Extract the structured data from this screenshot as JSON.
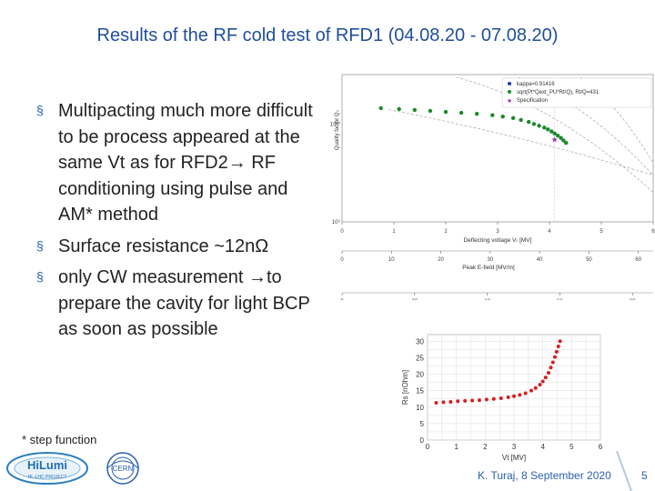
{
  "title": "Results of the RF cold test of RFD1 (04.08.20 - 07.08.20)",
  "bullets": [
    "Multipacting much more difficult to be process appeared at the same Vt as for RFD2→ RF conditioning using pulse and AM* method",
    "Surface resistance ~12nΩ",
    "only CW measurement →to prepare the cavity for light BCP as soon as possible"
  ],
  "bullet_marker": "§",
  "footnote": "* step function",
  "footer": {
    "author_date": "K. Turaj, 8 September 2020",
    "page_number": "5"
  },
  "logos": {
    "hilumi": "HiLumi",
    "hilumi_sub": "HL-LHC PROJECT",
    "cern": "CERN"
  },
  "colors": {
    "title": "#1f4e9c",
    "accent": "#2a60b0",
    "q_series": "#1a8a2a",
    "kappa_series": "#1a3cc0",
    "spec": "#9b30c0",
    "rs_series": "#d42020"
  },
  "chart_data": [
    {
      "type": "scatter",
      "title": "",
      "ylabel": "Quality factor Q₀",
      "xlabel": "Deflecting voltage Vₜ [MV]",
      "xlim": [
        0,
        6
      ],
      "x_ticks": [
        "0",
        "1",
        "2",
        "3",
        "4",
        "5",
        "6"
      ],
      "y_log": true,
      "y_ticks": [
        "10¹⁰",
        "10⁹"
      ],
      "secondary_axes": [
        {
          "label": "Peak E-field [MV/m]",
          "ticks": [
            "0",
            "10",
            "20",
            "30",
            "40",
            "50",
            "60"
          ]
        },
        {
          "label": "Peak B-field [mT]",
          "ticks": [
            "0",
            "20",
            "40",
            "60",
            "80"
          ]
        }
      ],
      "legend": [
        "kappa=0.91416",
        "sqrt(Pt*Qext_PU*Rt/Q), Rt/Q=431",
        "Specification"
      ],
      "legend_position": "top-right",
      "series": [
        {
          "name": "sqrt(Pt*Qext_PU*Rt/Q), Rt/Q=431",
          "x": [
            0.75,
            1.1,
            1.4,
            1.7,
            2.0,
            2.3,
            2.6,
            2.9,
            3.1,
            3.3,
            3.45,
            3.6,
            3.7,
            3.8,
            3.9,
            3.97,
            4.04,
            4.1,
            4.16,
            4.22,
            4.27,
            4.32
          ],
          "y": [
            14500000000.0,
            14200000000.0,
            13900000000.0,
            13600000000.0,
            13300000000.0,
            13000000000.0,
            12700000000.0,
            12300000000.0,
            11900000000.0,
            11500000000.0,
            11000000000.0,
            10500000000.0,
            10000000000.0,
            9600000000.0,
            9200000000.0,
            8800000000.0,
            8400000000.0,
            8000000000.0,
            7600000000.0,
            7200000000.0,
            6800000000.0,
            6400000000.0
          ]
        },
        {
          "name": "Specification",
          "x": [
            4.1
          ],
          "y": [
            6900000000.0
          ]
        }
      ],
      "grid": true
    },
    {
      "type": "scatter",
      "title": "",
      "ylabel": "Rs [nOhm]",
      "xlabel": "Vt [MV]",
      "xlim": [
        0,
        6
      ],
      "ylim": [
        0,
        32
      ],
      "x_ticks": [
        "0",
        "1",
        "2",
        "3",
        "4",
        "5",
        "6"
      ],
      "y_ticks": [
        "0",
        "5",
        "10",
        "15",
        "20",
        "25",
        "30"
      ],
      "series": [
        {
          "name": "Rs",
          "x": [
            0.3,
            0.55,
            0.8,
            1.05,
            1.3,
            1.55,
            1.8,
            2.05,
            2.3,
            2.55,
            2.8,
            3.0,
            3.2,
            3.4,
            3.6,
            3.75,
            3.9,
            4.0,
            4.1,
            4.2,
            4.28,
            4.35,
            4.42,
            4.48,
            4.54,
            4.6
          ],
          "y": [
            11.3,
            11.5,
            11.6,
            11.8,
            11.9,
            12.0,
            12.1,
            12.3,
            12.5,
            12.7,
            13.0,
            13.3,
            13.7,
            14.2,
            15.0,
            15.8,
            16.8,
            17.8,
            19.0,
            20.4,
            22.0,
            23.6,
            25.2,
            26.8,
            28.4,
            30.0
          ]
        }
      ],
      "grid": true
    }
  ]
}
